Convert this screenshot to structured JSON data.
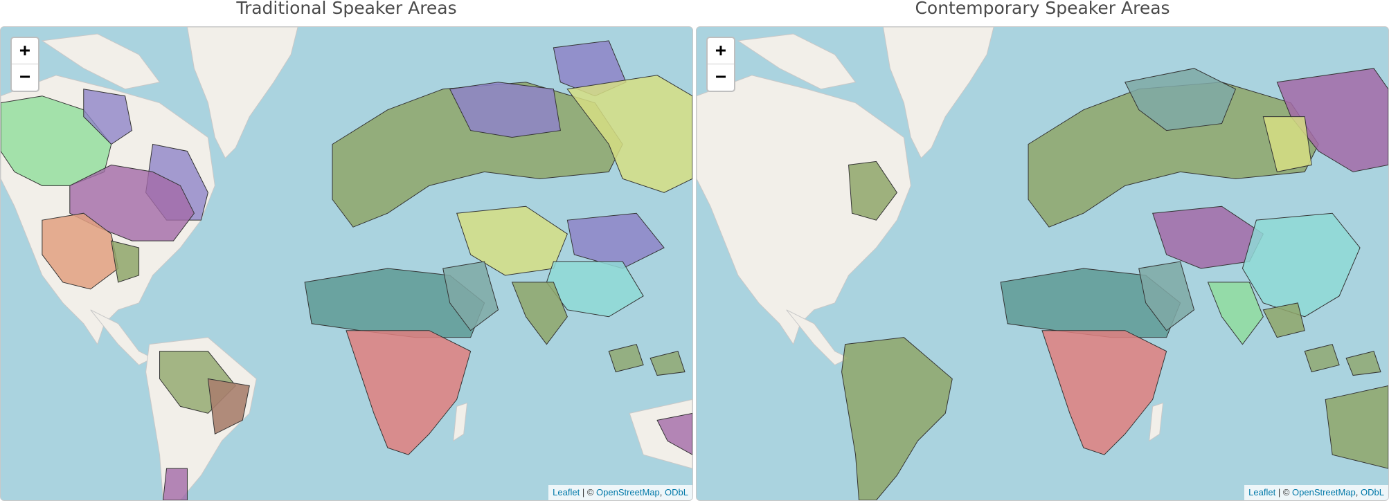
{
  "panels": {
    "left": {
      "title": "Traditional Speaker Areas",
      "zoom_in": "+",
      "zoom_out": "−",
      "attribution": {
        "leaflet": "Leaflet",
        "separator": " | © ",
        "osm": "OpenStreetMap",
        "comma": ", ",
        "odbl": "ODbL"
      }
    },
    "right": {
      "title": "Contemporary Speaker Areas",
      "zoom_in": "+",
      "zoom_out": "−",
      "attribution": {
        "leaflet": "Leaflet",
        "separator": " | © ",
        "osm": "OpenStreetMap",
        "comma": ", ",
        "odbl": "ODbL"
      }
    }
  },
  "colors": {
    "ocean": "#aad3df",
    "land": "#f2efe9",
    "ice": "#f7f7f5",
    "olive": "#8fa66a",
    "teal": "#5f9a95",
    "red": "#e07f7f",
    "lime": "#d6de84",
    "purple": "#8e84c8",
    "green": "#8fdd9a",
    "magenta": "#a36aa8",
    "orange": "#e2a080",
    "cyan": "#8fd9d6",
    "border": "#333333",
    "link": "#0078a8"
  }
}
